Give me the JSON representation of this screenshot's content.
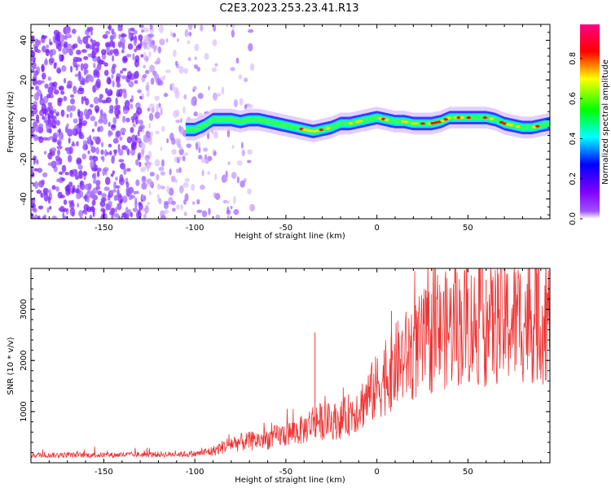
{
  "figure": {
    "title": "C2E3.2023.253.23.41.R13"
  },
  "chart_data": [
    {
      "type": "heatmap",
      "xlabel": "Height of straight line (km)",
      "ylabel": "Frequency (Hz)",
      "xlim": [
        -190,
        95
      ],
      "ylim": [
        -50,
        48
      ],
      "xticks": [
        -150,
        -100,
        -50,
        0,
        50
      ],
      "yticks": [
        -40,
        -20,
        0,
        20,
        40
      ],
      "colorbar": {
        "label": "Normalized spectral amplitude",
        "range": [
          0,
          0.97
        ],
        "ticks": [
          0.0,
          0.2,
          0.4,
          0.6,
          0.8
        ],
        "colormap": [
          "#ffffff",
          "#8000ff",
          "#0000ff",
          "#00ffff",
          "#00ff00",
          "#ffff00",
          "#ff0000",
          "#ff0080"
        ]
      },
      "ridge": {
        "name": "",
        "x": [
          -105,
          -100,
          -95,
          -90,
          -85,
          -80,
          -75,
          -70,
          -65,
          -60,
          -55,
          -50,
          -45,
          -40,
          -35,
          -30,
          -25,
          -20,
          -15,
          -10,
          -5,
          0,
          5,
          10,
          15,
          20,
          25,
          30,
          35,
          40,
          45,
          50,
          55,
          60,
          65,
          70,
          75,
          80,
          85,
          90,
          95
        ],
        "y": [
          -5,
          -5,
          -3,
          0,
          0,
          0,
          -1,
          0,
          0,
          -1,
          -2,
          -3,
          -4,
          -5,
          -6,
          -5,
          -4,
          -2,
          -2,
          -1,
          0,
          1,
          0,
          -1,
          -1,
          -2,
          -2,
          -2,
          -1,
          1,
          1,
          1,
          1,
          1,
          0,
          -2,
          -3,
          -4,
          -4,
          -3,
          -2
        ]
      },
      "noise_region_x": [
        -190,
        -68
      ]
    },
    {
      "type": "line",
      "xlabel": "Height of straight line (km)",
      "ylabel": "SNR (10 * v/v)",
      "xlim": [
        -190,
        95
      ],
      "ylim": [
        0,
        3800
      ],
      "xticks": [
        -150,
        -100,
        -50,
        0,
        50
      ],
      "yticks": [
        1000,
        2000,
        3000
      ],
      "series": [
        {
          "name": "",
          "color": "#ee3333",
          "envelope_x": [
            -190,
            -150,
            -100,
            -90,
            -80,
            -70,
            -60,
            -50,
            -40,
            -34,
            -30,
            -20,
            -10,
            0,
            10,
            20,
            30,
            40,
            50,
            60,
            70,
            80,
            90,
            95
          ],
          "envelope_y": [
            150,
            150,
            170,
            230,
            380,
            420,
            470,
            560,
            650,
            850,
            800,
            830,
            1080,
            1480,
            1900,
            2180,
            2420,
            2640,
            2700,
            2650,
            2720,
            2800,
            2750,
            2800
          ],
          "spikes": [
            {
              "x": -34,
              "y": 2550
            },
            {
              "x": 8,
              "y": 2970
            },
            {
              "x": 60,
              "y": 3580
            },
            {
              "x": 88,
              "y": 3700
            }
          ]
        }
      ]
    }
  ]
}
